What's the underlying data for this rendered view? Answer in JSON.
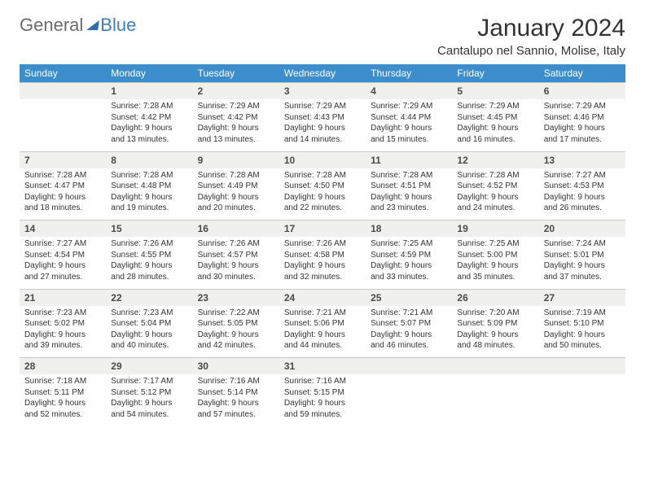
{
  "logo": {
    "general": "General",
    "blue": "Blue"
  },
  "title": "January 2024",
  "location": "Cantalupo nel Sannio, Molise, Italy",
  "colors": {
    "header_bg": "#3c8dcb",
    "header_text": "#ffffff",
    "daynum_bg": "#f0f0ee",
    "daynum_border": "#c7c7c4",
    "body_text": "#333333",
    "logo_gray": "#6b6b6b",
    "logo_blue": "#3c7fc0"
  },
  "typography": {
    "title_fontsize": 30,
    "location_fontsize": 15,
    "dow_fontsize": 12,
    "daynum_fontsize": 12,
    "cell_fontsize": 10
  },
  "days_of_week": [
    "Sunday",
    "Monday",
    "Tuesday",
    "Wednesday",
    "Thursday",
    "Friday",
    "Saturday"
  ],
  "weeks": [
    {
      "nums": [
        "",
        "1",
        "2",
        "3",
        "4",
        "5",
        "6"
      ],
      "cells": [
        null,
        {
          "sunrise": "Sunrise: 7:28 AM",
          "sunset": "Sunset: 4:42 PM",
          "day1": "Daylight: 9 hours",
          "day2": "and 13 minutes."
        },
        {
          "sunrise": "Sunrise: 7:29 AM",
          "sunset": "Sunset: 4:42 PM",
          "day1": "Daylight: 9 hours",
          "day2": "and 13 minutes."
        },
        {
          "sunrise": "Sunrise: 7:29 AM",
          "sunset": "Sunset: 4:43 PM",
          "day1": "Daylight: 9 hours",
          "day2": "and 14 minutes."
        },
        {
          "sunrise": "Sunrise: 7:29 AM",
          "sunset": "Sunset: 4:44 PM",
          "day1": "Daylight: 9 hours",
          "day2": "and 15 minutes."
        },
        {
          "sunrise": "Sunrise: 7:29 AM",
          "sunset": "Sunset: 4:45 PM",
          "day1": "Daylight: 9 hours",
          "day2": "and 16 minutes."
        },
        {
          "sunrise": "Sunrise: 7:29 AM",
          "sunset": "Sunset: 4:46 PM",
          "day1": "Daylight: 9 hours",
          "day2": "and 17 minutes."
        }
      ]
    },
    {
      "nums": [
        "7",
        "8",
        "9",
        "10",
        "11",
        "12",
        "13"
      ],
      "cells": [
        {
          "sunrise": "Sunrise: 7:28 AM",
          "sunset": "Sunset: 4:47 PM",
          "day1": "Daylight: 9 hours",
          "day2": "and 18 minutes."
        },
        {
          "sunrise": "Sunrise: 7:28 AM",
          "sunset": "Sunset: 4:48 PM",
          "day1": "Daylight: 9 hours",
          "day2": "and 19 minutes."
        },
        {
          "sunrise": "Sunrise: 7:28 AM",
          "sunset": "Sunset: 4:49 PM",
          "day1": "Daylight: 9 hours",
          "day2": "and 20 minutes."
        },
        {
          "sunrise": "Sunrise: 7:28 AM",
          "sunset": "Sunset: 4:50 PM",
          "day1": "Daylight: 9 hours",
          "day2": "and 22 minutes."
        },
        {
          "sunrise": "Sunrise: 7:28 AM",
          "sunset": "Sunset: 4:51 PM",
          "day1": "Daylight: 9 hours",
          "day2": "and 23 minutes."
        },
        {
          "sunrise": "Sunrise: 7:28 AM",
          "sunset": "Sunset: 4:52 PM",
          "day1": "Daylight: 9 hours",
          "day2": "and 24 minutes."
        },
        {
          "sunrise": "Sunrise: 7:27 AM",
          "sunset": "Sunset: 4:53 PM",
          "day1": "Daylight: 9 hours",
          "day2": "and 26 minutes."
        }
      ]
    },
    {
      "nums": [
        "14",
        "15",
        "16",
        "17",
        "18",
        "19",
        "20"
      ],
      "cells": [
        {
          "sunrise": "Sunrise: 7:27 AM",
          "sunset": "Sunset: 4:54 PM",
          "day1": "Daylight: 9 hours",
          "day2": "and 27 minutes."
        },
        {
          "sunrise": "Sunrise: 7:26 AM",
          "sunset": "Sunset: 4:55 PM",
          "day1": "Daylight: 9 hours",
          "day2": "and 28 minutes."
        },
        {
          "sunrise": "Sunrise: 7:26 AM",
          "sunset": "Sunset: 4:57 PM",
          "day1": "Daylight: 9 hours",
          "day2": "and 30 minutes."
        },
        {
          "sunrise": "Sunrise: 7:26 AM",
          "sunset": "Sunset: 4:58 PM",
          "day1": "Daylight: 9 hours",
          "day2": "and 32 minutes."
        },
        {
          "sunrise": "Sunrise: 7:25 AM",
          "sunset": "Sunset: 4:59 PM",
          "day1": "Daylight: 9 hours",
          "day2": "and 33 minutes."
        },
        {
          "sunrise": "Sunrise: 7:25 AM",
          "sunset": "Sunset: 5:00 PM",
          "day1": "Daylight: 9 hours",
          "day2": "and 35 minutes."
        },
        {
          "sunrise": "Sunrise: 7:24 AM",
          "sunset": "Sunset: 5:01 PM",
          "day1": "Daylight: 9 hours",
          "day2": "and 37 minutes."
        }
      ]
    },
    {
      "nums": [
        "21",
        "22",
        "23",
        "24",
        "25",
        "26",
        "27"
      ],
      "cells": [
        {
          "sunrise": "Sunrise: 7:23 AM",
          "sunset": "Sunset: 5:02 PM",
          "day1": "Daylight: 9 hours",
          "day2": "and 39 minutes."
        },
        {
          "sunrise": "Sunrise: 7:23 AM",
          "sunset": "Sunset: 5:04 PM",
          "day1": "Daylight: 9 hours",
          "day2": "and 40 minutes."
        },
        {
          "sunrise": "Sunrise: 7:22 AM",
          "sunset": "Sunset: 5:05 PM",
          "day1": "Daylight: 9 hours",
          "day2": "and 42 minutes."
        },
        {
          "sunrise": "Sunrise: 7:21 AM",
          "sunset": "Sunset: 5:06 PM",
          "day1": "Daylight: 9 hours",
          "day2": "and 44 minutes."
        },
        {
          "sunrise": "Sunrise: 7:21 AM",
          "sunset": "Sunset: 5:07 PM",
          "day1": "Daylight: 9 hours",
          "day2": "and 46 minutes."
        },
        {
          "sunrise": "Sunrise: 7:20 AM",
          "sunset": "Sunset: 5:09 PM",
          "day1": "Daylight: 9 hours",
          "day2": "and 48 minutes."
        },
        {
          "sunrise": "Sunrise: 7:19 AM",
          "sunset": "Sunset: 5:10 PM",
          "day1": "Daylight: 9 hours",
          "day2": "and 50 minutes."
        }
      ]
    },
    {
      "nums": [
        "28",
        "29",
        "30",
        "31",
        "",
        "",
        ""
      ],
      "cells": [
        {
          "sunrise": "Sunrise: 7:18 AM",
          "sunset": "Sunset: 5:11 PM",
          "day1": "Daylight: 9 hours",
          "day2": "and 52 minutes."
        },
        {
          "sunrise": "Sunrise: 7:17 AM",
          "sunset": "Sunset: 5:12 PM",
          "day1": "Daylight: 9 hours",
          "day2": "and 54 minutes."
        },
        {
          "sunrise": "Sunrise: 7:16 AM",
          "sunset": "Sunset: 5:14 PM",
          "day1": "Daylight: 9 hours",
          "day2": "and 57 minutes."
        },
        {
          "sunrise": "Sunrise: 7:16 AM",
          "sunset": "Sunset: 5:15 PM",
          "day1": "Daylight: 9 hours",
          "day2": "and 59 minutes."
        },
        null,
        null,
        null
      ]
    }
  ]
}
